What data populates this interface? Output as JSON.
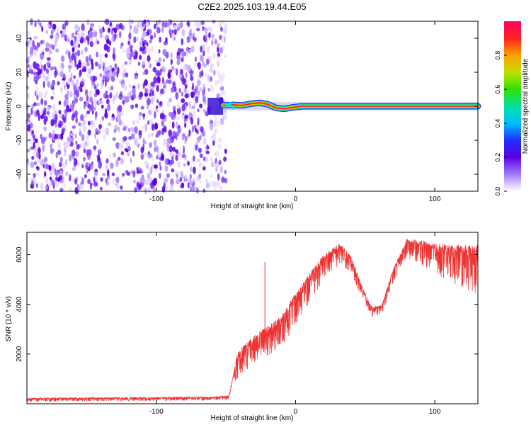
{
  "figure": {
    "title": "C2E2.2025.103.19.44.E05"
  },
  "chart_data": [
    {
      "type": "heatmap",
      "xlabel": "Height of straight line (km)",
      "ylabel": "Frequency (Hz)",
      "xlim": [
        -193,
        131
      ],
      "ylim": [
        -50,
        50
      ],
      "xticks": [
        -100,
        0,
        100
      ],
      "xtick_labels": [
        "-100",
        "0",
        "100"
      ],
      "yticks": [
        -40,
        -20,
        0,
        20,
        40
      ],
      "ytick_labels": [
        "-40",
        "-20",
        "0",
        "20",
        "40"
      ],
      "colorbar": {
        "label": "Normalized spectral amplitude",
        "range": [
          0,
          1
        ],
        "ticks": [
          0.0,
          0.2,
          0.4,
          0.6,
          0.8
        ],
        "tick_labels": [
          "0.0",
          "0.2",
          "0.4",
          "0.6",
          "0.8"
        ],
        "colors": [
          "#ffffff",
          "#a07cff",
          "#5a00e0",
          "#2030ff",
          "#00c0ff",
          "#00e0a0",
          "#30e000",
          "#c0e000",
          "#ffa000",
          "#ff2020",
          "#ff0060"
        ]
      },
      "noise_region_x": [
        -193,
        -50
      ],
      "signal_ridge": [
        {
          "x": -52,
          "y": 0.5
        },
        {
          "x": -45,
          "y": 0.8
        },
        {
          "x": -38,
          "y": 0.5
        },
        {
          "x": -32,
          "y": 1.5
        },
        {
          "x": -26,
          "y": 2.0
        },
        {
          "x": -20,
          "y": 1.2
        },
        {
          "x": -14,
          "y": -1.0
        },
        {
          "x": -8,
          "y": -1.5
        },
        {
          "x": -3,
          "y": -0.8
        },
        {
          "x": 5,
          "y": 0.0
        },
        {
          "x": 131,
          "y": 0.0
        }
      ],
      "grid": false
    },
    {
      "type": "line",
      "xlabel": "Height of straight line (km)",
      "ylabel": "SNR (10 * v/v)",
      "xlim": [
        -193,
        131
      ],
      "ylim": [
        0,
        6900
      ],
      "xticks": [
        -100,
        0,
        100
      ],
      "xtick_labels": [
        "-100",
        "0",
        "100"
      ],
      "yticks": [
        2000,
        4000,
        6000
      ],
      "ytick_labels": [
        "2000",
        "4000",
        "6000"
      ],
      "grid": false,
      "series": [
        {
          "color": "#ee3333",
          "envelope": [
            {
              "x": -193,
              "y": 200
            },
            {
              "x": -60,
              "y": 250
            },
            {
              "x": -48,
              "y": 300
            },
            {
              "x": -42,
              "y": 1800
            },
            {
              "x": -35,
              "y": 2300
            },
            {
              "x": -25,
              "y": 2700
            },
            {
              "x": -10,
              "y": 3300
            },
            {
              "x": 0,
              "y": 4200
            },
            {
              "x": 10,
              "y": 5000
            },
            {
              "x": 20,
              "y": 5800
            },
            {
              "x": 32,
              "y": 6300
            },
            {
              "x": 40,
              "y": 5800
            },
            {
              "x": 48,
              "y": 4600
            },
            {
              "x": 55,
              "y": 3800
            },
            {
              "x": 62,
              "y": 3900
            },
            {
              "x": 70,
              "y": 5300
            },
            {
              "x": 80,
              "y": 6500
            },
            {
              "x": 95,
              "y": 6300
            },
            {
              "x": 110,
              "y": 6100
            },
            {
              "x": 131,
              "y": 6000
            }
          ],
          "noise_amplitude": [
            {
              "x": -193,
              "y": 120
            },
            {
              "x": -45,
              "y": 120
            },
            {
              "x": -42,
              "y": 900
            },
            {
              "x": 0,
              "y": 1100
            },
            {
              "x": 30,
              "y": 700
            },
            {
              "x": 55,
              "y": 300
            },
            {
              "x": 75,
              "y": 500
            },
            {
              "x": 131,
              "y": 1600
            }
          ],
          "spikes": [
            {
              "x": -22,
              "y": 5700
            }
          ]
        }
      ]
    }
  ]
}
